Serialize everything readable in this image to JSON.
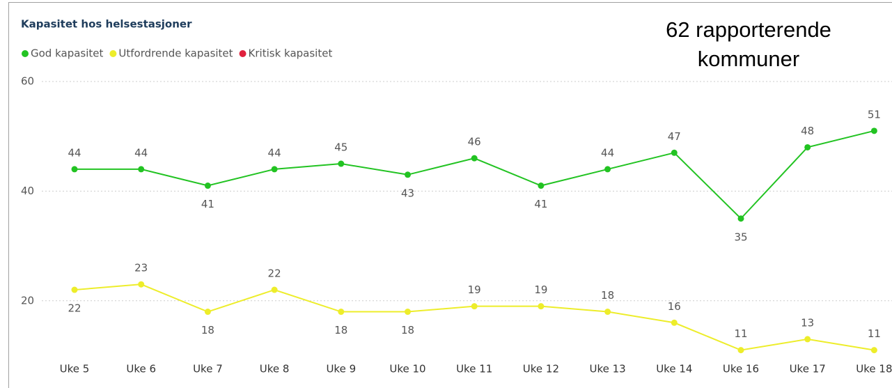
{
  "chart_data": {
    "type": "line",
    "title": "Kapasitet hos helsestasjoner",
    "annotation": "62 rapporterende kommuner",
    "categories": [
      "Uke 5",
      "Uke 6",
      "Uke 7",
      "Uke 8",
      "Uke 9",
      "Uke 10",
      "Uke 11",
      "Uke 12",
      "Uke 13",
      "Uke 14",
      "Uke 16",
      "Uke 17",
      "Uke 18"
    ],
    "series": [
      {
        "name": "God kapasitet",
        "color": "#22c322",
        "values": [
          44,
          44,
          41,
          44,
          45,
          43,
          46,
          41,
          44,
          47,
          35,
          48,
          51
        ]
      },
      {
        "name": "Utfordrende kapasitet",
        "color": "#eded2a",
        "values": [
          22,
          23,
          18,
          22,
          18,
          18,
          19,
          19,
          18,
          16,
          11,
          13,
          11
        ]
      },
      {
        "name": "Kritisk kapasitet",
        "color": "#e0213d",
        "values": [
          null,
          null,
          null,
          null,
          null,
          null,
          null,
          null,
          null,
          null,
          null,
          null,
          null
        ]
      }
    ],
    "ylim": [
      10,
      60
    ],
    "yticks": [
      20,
      40,
      60
    ],
    "grid": true,
    "legend": "top-left"
  }
}
